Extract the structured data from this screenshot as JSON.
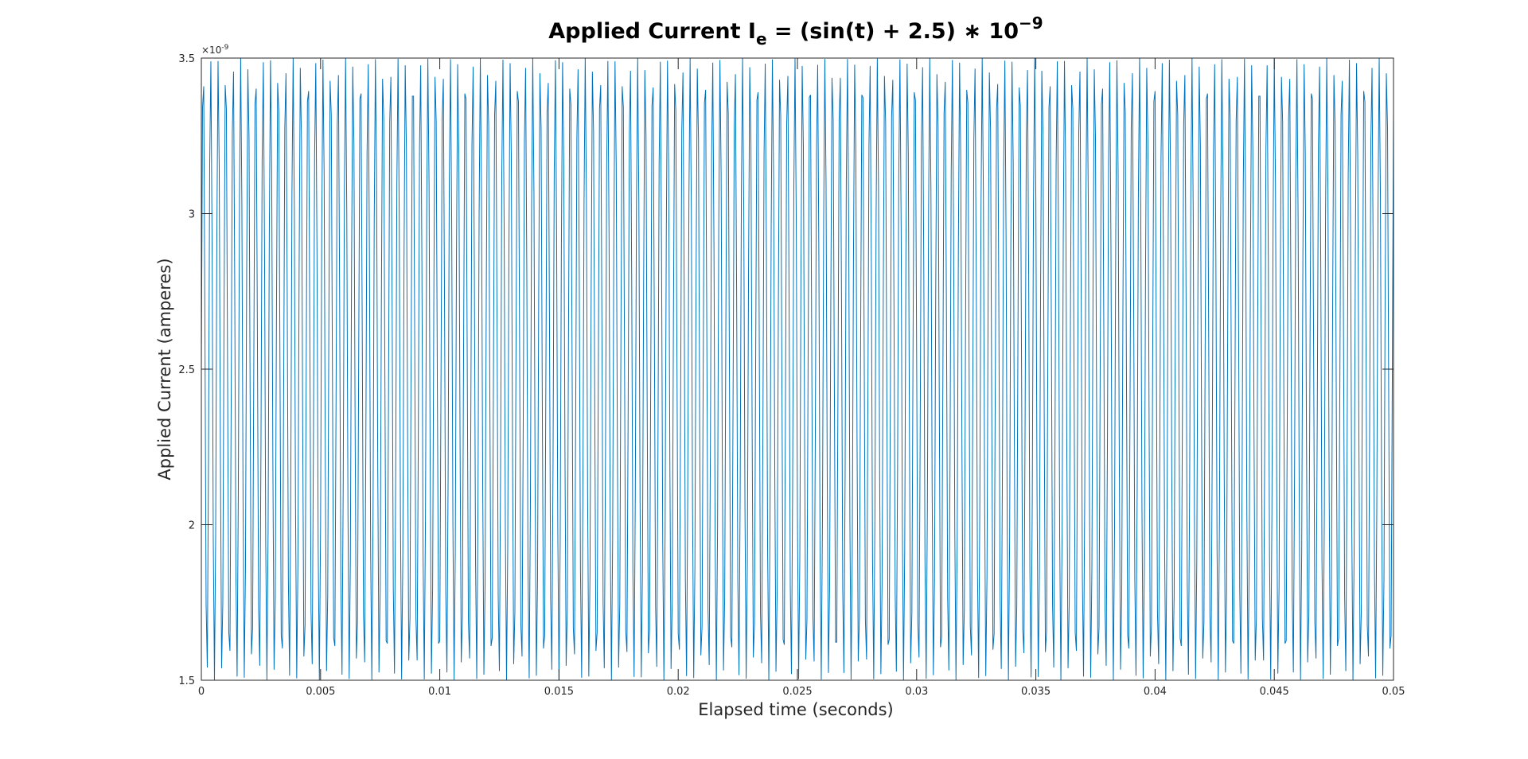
{
  "chart_data": {
    "type": "line",
    "title": {
      "prefix": "Applied Current I",
      "subscript": "e",
      "middle": " = (sin(t) + 2.5) ∗ 10",
      "superscript": "−9"
    },
    "xlabel": "Elapsed time (seconds)",
    "ylabel": "Applied Current (amperes)",
    "y_exponent_label": {
      "base": "×10",
      "power": "-9"
    },
    "xlim": [
      0,
      0.05
    ],
    "ylim": [
      1.5e-09,
      3.5e-09
    ],
    "x_ticks": [
      0,
      0.005,
      0.01,
      0.015,
      0.02,
      0.025,
      0.03,
      0.035,
      0.04,
      0.045,
      0.05
    ],
    "x_tick_labels": [
      "0",
      "0.005",
      "0.01",
      "0.015",
      "0.02",
      "0.025",
      "0.03",
      "0.035",
      "0.04",
      "0.045",
      "0.05"
    ],
    "y_ticks": [
      1.5e-09,
      2e-09,
      2.5e-09,
      3e-09,
      3.5e-09
    ],
    "y_tick_labels": [
      "1.5",
      "2",
      "2.5",
      "3",
      "3.5"
    ],
    "grid": false,
    "legend": "none",
    "series": [
      {
        "formula": "(sin(t) + 2.5) * 1e-9",
        "sample_step": 5e-05,
        "color": "#0072bd"
      }
    ]
  }
}
